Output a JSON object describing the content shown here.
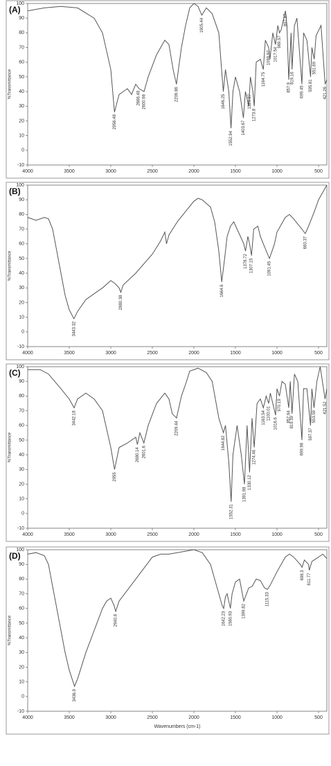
{
  "chart_data": [
    {
      "type": "line",
      "title": "(A)",
      "ylabel": "%Transmittance",
      "color": "#555555",
      "x": [
        4000,
        3800,
        3600,
        3400,
        3200,
        3100,
        3000,
        2956,
        2900,
        2850,
        2800,
        2750,
        2700,
        2660,
        2600,
        2550,
        2450,
        2350,
        2300,
        2250,
        2210,
        2150,
        2100,
        2050,
        2000,
        1950,
        1905,
        1850,
        1780,
        1700,
        1660,
        1646,
        1620,
        1580,
        1553,
        1530,
        1500,
        1450,
        1404,
        1380,
        1340,
        1320,
        1290,
        1274,
        1250,
        1200,
        1165,
        1140,
        1100,
        1085,
        1050,
        1018,
        990,
        970,
        950,
        898,
        880,
        858,
        830,
        819,
        790,
        760,
        700,
        680,
        640,
        596,
        580,
        552,
        530,
        470,
        421,
        400
      ],
      "values": [
        95,
        97,
        98,
        97,
        90,
        80,
        55,
        26,
        38,
        40,
        42,
        38,
        45,
        42,
        40,
        50,
        65,
        75,
        72,
        55,
        45,
        70,
        85,
        97,
        100,
        98,
        92,
        97,
        93,
        80,
        50,
        40,
        55,
        40,
        15,
        40,
        50,
        40,
        22,
        40,
        30,
        50,
        40,
        30,
        60,
        62,
        55,
        75,
        70,
        62,
        80,
        72,
        85,
        80,
        82,
        95,
        85,
        48,
        80,
        55,
        85,
        90,
        45,
        80,
        75,
        50,
        70,
        62,
        78,
        85,
        45,
        48
      ],
      "peaks": [
        2956.48,
        2666.48,
        2600.98,
        2209.86,
        1905.44,
        1646.25,
        1552.94,
        1403.67,
        1329.87,
        1273.8,
        1164.75,
        1099.97,
        1017.54,
        969.57,
        897.87,
        857.9,
        819.16,
        699.45,
        595.81,
        551.69,
        421.26
      ],
      "xlim": [
        4000,
        400
      ],
      "ylim": [
        -10,
        100
      ],
      "xticks": [
        4000,
        3500,
        3000,
        2500,
        2000,
        1500,
        1000,
        500
      ],
      "yticks": [
        -10,
        0,
        10,
        20,
        30,
        40,
        50,
        60,
        70,
        80,
        90,
        100
      ]
    },
    {
      "type": "line",
      "title": "(B)",
      "ylabel": "%Transmittance",
      "color": "#555555",
      "x": [
        4000,
        3900,
        3800,
        3750,
        3700,
        3650,
        3600,
        3550,
        3500,
        3443,
        3400,
        3300,
        3200,
        3100,
        3000,
        2950,
        2900,
        2880,
        2850,
        2700,
        2500,
        2400,
        2350,
        2330,
        2300,
        2200,
        2100,
        2000,
        1950,
        1900,
        1800,
        1750,
        1700,
        1665,
        1630,
        1600,
        1560,
        1520,
        1480,
        1400,
        1379,
        1350,
        1330,
        1307,
        1280,
        1230,
        1200,
        1150,
        1091,
        1060,
        1030,
        1000,
        900,
        850,
        800,
        700,
        660,
        620,
        550,
        500,
        450,
        400
      ],
      "values": [
        78,
        76,
        78,
        77,
        70,
        55,
        40,
        25,
        15,
        9,
        14,
        22,
        26,
        30,
        35,
        33,
        30,
        27,
        32,
        40,
        53,
        62,
        68,
        60,
        66,
        75,
        82,
        89,
        91,
        90,
        85,
        75,
        55,
        34,
        50,
        65,
        72,
        75,
        70,
        60,
        55,
        65,
        60,
        52,
        70,
        72,
        65,
        58,
        50,
        55,
        60,
        68,
        78,
        80,
        77,
        70,
        67,
        72,
        82,
        90,
        95,
        100
      ],
      "peaks": [
        3443.32,
        2880.38,
        1664.6,
        1378.72,
        1307.15,
        1091.45,
        660.37
      ],
      "xlim": [
        4000,
        400
      ],
      "ylim": [
        -10,
        100
      ],
      "xticks": [
        4000,
        3500,
        3000,
        2500,
        2000,
        1500,
        1000,
        500
      ],
      "yticks": [
        -10,
        0,
        10,
        20,
        30,
        40,
        50,
        60,
        70,
        80,
        90,
        100
      ]
    },
    {
      "type": "line",
      "title": "(C)",
      "ylabel": "%Transmittance",
      "color": "#555555",
      "x": [
        4000,
        3850,
        3750,
        3600,
        3500,
        3442,
        3400,
        3300,
        3200,
        3100,
        3000,
        2955,
        2900,
        2800,
        2700,
        2680,
        2650,
        2602,
        2550,
        2450,
        2350,
        2300,
        2260,
        2209,
        2150,
        2100,
        2050,
        1950,
        1850,
        1780,
        1700,
        1645,
        1620,
        1580,
        1552,
        1530,
        1480,
        1430,
        1392,
        1360,
        1330,
        1300,
        1274,
        1240,
        1200,
        1164,
        1130,
        1100,
        1080,
        1017,
        1000,
        970,
        940,
        900,
        858,
        840,
        819,
        790,
        750,
        700,
        680,
        640,
        597,
        580,
        554,
        520,
        480,
        422,
        400
      ],
      "values": [
        98,
        98,
        95,
        85,
        78,
        72,
        78,
        82,
        78,
        70,
        45,
        30,
        45,
        48,
        52,
        47,
        55,
        48,
        60,
        75,
        82,
        78,
        68,
        65,
        80,
        88,
        97,
        99,
        96,
        90,
        65,
        55,
        60,
        35,
        8,
        40,
        60,
        40,
        20,
        60,
        28,
        65,
        45,
        75,
        78,
        72,
        80,
        75,
        82,
        67,
        85,
        80,
        90,
        88,
        72,
        90,
        68,
        95,
        90,
        50,
        85,
        85,
        60,
        85,
        72,
        90,
        100,
        78,
        85
      ],
      "peaks": [
        3442.18,
        2955.0,
        2680.14,
        2601.6,
        2209.44,
        1644.82,
        1552.31,
        1391.98,
        1330.12,
        1274.46,
        1163.54,
        1100.01,
        1016.6,
        970.19,
        857.94,
        819.39,
        699.98,
        597.37,
        553.59,
        421.52
      ],
      "xlim": [
        4000,
        400
      ],
      "ylim": [
        -10,
        100
      ],
      "xticks": [
        4000,
        3500,
        3000,
        2500,
        2000,
        1500,
        1000,
        500
      ],
      "yticks": [
        -10,
        0,
        10,
        20,
        30,
        40,
        50,
        60,
        70,
        80,
        90,
        100
      ]
    },
    {
      "type": "line",
      "title": "(D)",
      "ylabel": "%Transmittance",
      "xlabel": "Wavenumbers (cm-1)",
      "color": "#555555",
      "x": [
        4000,
        3900,
        3800,
        3750,
        3700,
        3650,
        3600,
        3550,
        3500,
        3437,
        3400,
        3300,
        3200,
        3100,
        3050,
        3000,
        2960,
        2941,
        2900,
        2700,
        2500,
        2400,
        2300,
        2100,
        2000,
        1900,
        1800,
        1750,
        1700,
        1660,
        1642,
        1620,
        1600,
        1561,
        1540,
        1500,
        1450,
        1400,
        1340,
        1300,
        1250,
        1200,
        1150,
        1115,
        1080,
        1000,
        900,
        850,
        800,
        720,
        698,
        670,
        620,
        612,
        580,
        500,
        450,
        400
      ],
      "values": [
        97,
        98,
        96,
        90,
        75,
        60,
        45,
        30,
        18,
        7,
        12,
        30,
        45,
        60,
        65,
        67,
        62,
        58,
        65,
        80,
        95,
        97,
        97,
        99,
        100,
        98,
        90,
        80,
        70,
        62,
        60,
        68,
        70,
        60,
        70,
        78,
        80,
        65,
        74,
        75,
        80,
        79,
        74,
        73,
        76,
        85,
        95,
        97,
        95,
        90,
        88,
        93,
        90,
        86,
        92,
        95,
        97,
        94
      ],
      "peaks": [
        3436.9,
        2940.8,
        1642.23,
        1560.93,
        1399.82,
        1115.33,
        698.3,
        611.77
      ],
      "xlim": [
        4000,
        400
      ],
      "ylim": [
        -10,
        100
      ],
      "xticks": [
        4000,
        3500,
        3000,
        2500,
        2000,
        1500,
        1000,
        500
      ],
      "yticks": [
        -10,
        0,
        10,
        20,
        30,
        40,
        50,
        60,
        70,
        80,
        90,
        100
      ]
    }
  ]
}
